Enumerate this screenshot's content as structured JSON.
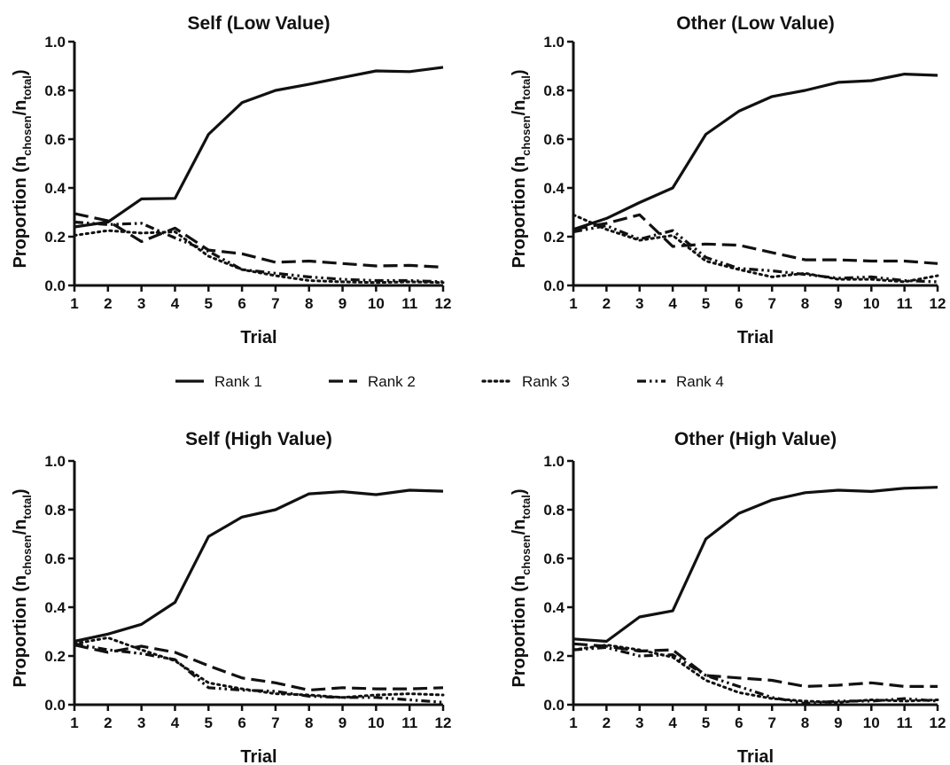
{
  "legend": {
    "placement": "center-middle",
    "entries": [
      "Rank 1",
      "Rank 2",
      "Rank 3",
      "Rank 4"
    ]
  },
  "styles": {
    "line_color": "#111111",
    "dash_patterns": {
      "Rank 1": "solid",
      "Rank 2": "dashed",
      "Rank 3": "dotted",
      "Rank 4": "dash-dot-dot"
    }
  },
  "chart_data": [
    {
      "type": "line",
      "title": "Self (Low Value)",
      "xlabel": "Trial",
      "ylabel": "Proportion (n",
      "ylabel_sub1": "chosen",
      "ylabel_mid": "/n",
      "ylabel_sub2": "total",
      "ylabel_end": ")",
      "xlim": [
        1,
        12
      ],
      "ylim": [
        0,
        1
      ],
      "x": [
        1,
        2,
        3,
        4,
        5,
        6,
        7,
        8,
        9,
        10,
        11,
        12
      ],
      "xticks": [
        "1",
        "2",
        "3",
        "4",
        "5",
        "6",
        "7",
        "8",
        "9",
        "10",
        "11",
        "12"
      ],
      "yticks": [
        "0.0",
        "0.2",
        "0.4",
        "0.6",
        "0.8",
        "1.0"
      ],
      "grid": false,
      "series": [
        {
          "name": "Rank 1",
          "values": [
            0.24,
            0.26,
            0.355,
            0.357,
            0.62,
            0.75,
            0.8,
            0.825,
            0.853,
            0.88,
            0.877,
            0.895
          ]
        },
        {
          "name": "Rank 2",
          "values": [
            0.295,
            0.265,
            0.18,
            0.235,
            0.145,
            0.13,
            0.095,
            0.1,
            0.09,
            0.08,
            0.082,
            0.075
          ]
        },
        {
          "name": "Rank 3",
          "values": [
            0.205,
            0.225,
            0.215,
            0.22,
            0.12,
            0.065,
            0.04,
            0.02,
            0.015,
            0.012,
            0.015,
            0.012
          ]
        },
        {
          "name": "Rank 4",
          "values": [
            0.26,
            0.25,
            0.255,
            0.195,
            0.14,
            0.065,
            0.05,
            0.035,
            0.025,
            0.02,
            0.02,
            0.015
          ]
        }
      ]
    },
    {
      "type": "line",
      "title": "Other (Low Value)",
      "xlabel": "Trial",
      "ylabel": "Proportion (n",
      "ylabel_sub1": "chosen",
      "ylabel_mid": "/n",
      "ylabel_sub2": "total",
      "ylabel_end": ")",
      "xlim": [
        1,
        12
      ],
      "ylim": [
        0,
        1
      ],
      "x": [
        1,
        2,
        3,
        4,
        5,
        6,
        7,
        8,
        9,
        10,
        11,
        12
      ],
      "xticks": [
        "1",
        "2",
        "3",
        "4",
        "5",
        "6",
        "7",
        "8",
        "9",
        "10",
        "11",
        "12"
      ],
      "yticks": [
        "0.0",
        "0.2",
        "0.4",
        "0.6",
        "0.8",
        "1.0"
      ],
      "grid": false,
      "series": [
        {
          "name": "Rank 1",
          "values": [
            0.23,
            0.275,
            0.34,
            0.4,
            0.62,
            0.715,
            0.775,
            0.8,
            0.833,
            0.84,
            0.867,
            0.862
          ]
        },
        {
          "name": "Rank 2",
          "values": [
            0.23,
            0.255,
            0.29,
            0.16,
            0.17,
            0.165,
            0.135,
            0.105,
            0.105,
            0.1,
            0.1,
            0.09
          ]
        },
        {
          "name": "Rank 3",
          "values": [
            0.29,
            0.23,
            0.185,
            0.205,
            0.1,
            0.065,
            0.035,
            0.05,
            0.025,
            0.025,
            0.015,
            0.04
          ]
        },
        {
          "name": "Rank 4",
          "values": [
            0.22,
            0.245,
            0.19,
            0.225,
            0.115,
            0.07,
            0.06,
            0.045,
            0.03,
            0.035,
            0.02,
            0.015
          ]
        }
      ]
    },
    {
      "type": "line",
      "title": "Self (High Value)",
      "xlabel": "Trial",
      "ylabel": "Proportion (n",
      "ylabel_sub1": "chosen",
      "ylabel_mid": "/n",
      "ylabel_sub2": "total",
      "ylabel_end": ")",
      "xlim": [
        1,
        12
      ],
      "ylim": [
        0,
        1
      ],
      "x": [
        1,
        2,
        3,
        4,
        5,
        6,
        7,
        8,
        9,
        10,
        11,
        12
      ],
      "xticks": [
        "1",
        "2",
        "3",
        "4",
        "5",
        "6",
        "7",
        "8",
        "9",
        "10",
        "11",
        "12"
      ],
      "yticks": [
        "0.0",
        "0.2",
        "0.4",
        "0.6",
        "0.8",
        "1.0"
      ],
      "grid": false,
      "series": [
        {
          "name": "Rank 1",
          "values": [
            0.26,
            0.29,
            0.33,
            0.42,
            0.69,
            0.77,
            0.8,
            0.865,
            0.874,
            0.862,
            0.88,
            0.876
          ]
        },
        {
          "name": "Rank 2",
          "values": [
            0.245,
            0.215,
            0.24,
            0.215,
            0.16,
            0.11,
            0.09,
            0.06,
            0.07,
            0.065,
            0.065,
            0.07
          ]
        },
        {
          "name": "Rank 3",
          "values": [
            0.25,
            0.275,
            0.225,
            0.18,
            0.09,
            0.065,
            0.045,
            0.04,
            0.03,
            0.04,
            0.045,
            0.04
          ]
        },
        {
          "name": "Rank 4",
          "values": [
            0.25,
            0.225,
            0.21,
            0.185,
            0.07,
            0.06,
            0.055,
            0.035,
            0.03,
            0.03,
            0.02,
            0.01
          ]
        }
      ]
    },
    {
      "type": "line",
      "title": "Other (High Value)",
      "xlabel": "Trial",
      "ylabel": "Proportion (n",
      "ylabel_sub1": "chosen",
      "ylabel_mid": "/n",
      "ylabel_sub2": "total",
      "ylabel_end": ")",
      "xlim": [
        1,
        12
      ],
      "ylim": [
        0,
        1
      ],
      "x": [
        1,
        2,
        3,
        4,
        5,
        6,
        7,
        8,
        9,
        10,
        11,
        12
      ],
      "xticks": [
        "1",
        "2",
        "3",
        "4",
        "5",
        "6",
        "7",
        "8",
        "9",
        "10",
        "11",
        "12"
      ],
      "yticks": [
        "0.0",
        "0.2",
        "0.4",
        "0.6",
        "0.8",
        "1.0"
      ],
      "grid": false,
      "series": [
        {
          "name": "Rank 1",
          "values": [
            0.27,
            0.26,
            0.36,
            0.385,
            0.68,
            0.785,
            0.84,
            0.87,
            0.88,
            0.875,
            0.888,
            0.892
          ]
        },
        {
          "name": "Rank 2",
          "values": [
            0.25,
            0.24,
            0.22,
            0.225,
            0.12,
            0.11,
            0.1,
            0.075,
            0.08,
            0.09,
            0.075,
            0.075
          ]
        },
        {
          "name": "Rank 3",
          "values": [
            0.225,
            0.245,
            0.225,
            0.195,
            0.1,
            0.05,
            0.025,
            0.015,
            0.01,
            0.02,
            0.015,
            0.02
          ]
        },
        {
          "name": "Rank 4",
          "values": [
            0.225,
            0.235,
            0.2,
            0.205,
            0.12,
            0.075,
            0.03,
            0.005,
            0.015,
            0.015,
            0.025,
            0.015
          ]
        }
      ]
    }
  ]
}
